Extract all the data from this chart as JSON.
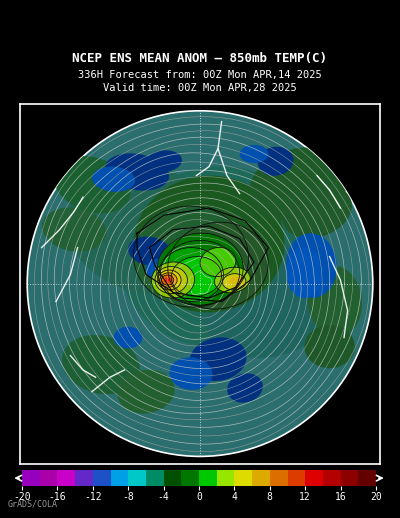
{
  "title_line1": "NCEP ENS MEAN ANOM – 850mb TEMP(C)",
  "title_line2": "336H Forecast from: 00Z Mon APR,14 2025",
  "title_line3": "Valid time: 00Z Mon APR,28 2025",
  "colorbar_levels": [
    -20,
    -18,
    -16,
    -14,
    -12,
    -10,
    -8,
    -6,
    -4,
    -2,
    0,
    2,
    4,
    6,
    8,
    10,
    12,
    14,
    16,
    18,
    20
  ],
  "colorbar_tick_labels": [
    "-20",
    "-16",
    "-12",
    "-8",
    "-4",
    "0",
    "4",
    "8",
    "12",
    "16",
    "20"
  ],
  "colorbar_tick_positions": [
    -20,
    -16,
    -12,
    -8,
    -4,
    0,
    4,
    8,
    12,
    16,
    20
  ],
  "colorbar_colors": [
    "#9600be",
    "#aa00aa",
    "#c800c8",
    "#6428c8",
    "#1e50c8",
    "#00a0e6",
    "#00c8c8",
    "#008c64",
    "#005000",
    "#007800",
    "#00c800",
    "#96e600",
    "#dcdc00",
    "#dcaa00",
    "#dc6e00",
    "#dc3c00",
    "#dc0000",
    "#b40000",
    "#8c0000",
    "#640000"
  ],
  "bg_color": "#000000",
  "text_color": "#ffffff",
  "map_bg_teal": "#2a7a6a",
  "map_border_color": "#ffffff",
  "grads_label": "GrADS/COLA",
  "ocean_color": "#2a6e6e",
  "neg_blue_dark": "#003080",
  "neg_blue_mid": "#0050b0",
  "neg_blue_light": "#0070d0",
  "pos_green_dark": "#004800",
  "pos_green_mid": "#006e00",
  "pos_green_bright": "#00aa00",
  "pos_yellow_green": "#88cc00",
  "warm_yellow": "#dddd00",
  "warm_orange": "#ee8800",
  "warm_red": "#ee2200",
  "contour_color_gray": "#aaaaaa",
  "contour_color_white": "#ffffff",
  "contour_color_black": "#111111"
}
